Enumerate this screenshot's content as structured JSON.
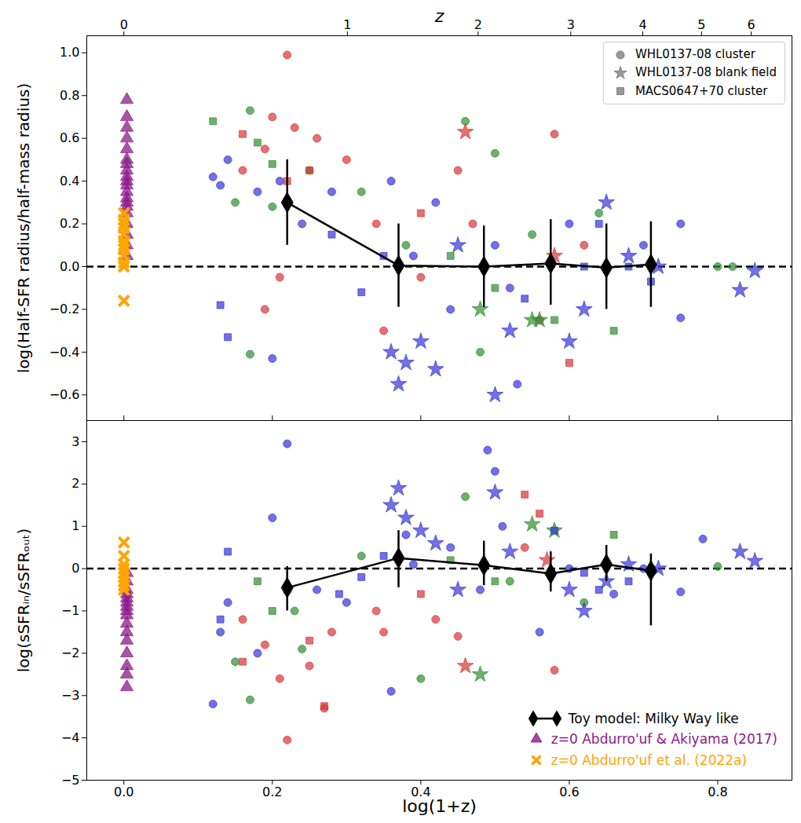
{
  "chart_data": [
    {
      "type": "scatter",
      "ylabel": "log(Half-SFR radius/half-mass radius)",
      "x2label": "z",
      "xlim": [
        -0.05,
        0.9
      ],
      "xticks": [
        {
          "value": 0,
          "label": "0.0"
        },
        0.2,
        0.4,
        0.6,
        0.8
      ],
      "x2ticks": [
        0,
        {
          "value": 0.30103,
          "label": "1"
        },
        {
          "value": 0.47712,
          "label": "2"
        },
        {
          "value": 0.60206,
          "label": "3"
        },
        {
          "value": 0.69897,
          "label": "4"
        },
        {
          "value": 0.77815,
          "label": "5"
        },
        {
          "value": 0.8451,
          "label": "6"
        }
      ],
      "ylim": [
        -0.72,
        1.08
      ],
      "yticks": [
        {
          "value": -0.6,
          "label": "−0.6"
        },
        {
          "value": -0.4,
          "label": "−0.4"
        },
        {
          "value": -0.2,
          "label": "−0.2"
        },
        {
          "value": 0,
          "label": "0.0"
        },
        0.2,
        0.4,
        0.6,
        0.8,
        {
          "value": 1,
          "label": "1.0"
        }
      ],
      "tick_labels": "y",
      "hline": 0,
      "legend": "upper right",
      "series": [
        {
          "name": "WHL0137-08 cluster",
          "marker": "circle",
          "color": "#808080",
          "x": [
            0.12,
            0.13,
            0.14,
            0.15,
            0.16,
            0.17,
            0.18,
            0.19,
            0.2,
            0.2,
            0.21,
            0.22,
            0.23,
            0.24,
            0.25,
            0.26,
            0.28,
            0.3,
            0.17,
            0.2,
            0.19,
            0.21,
            0.32,
            0.34,
            0.36,
            0.38,
            0.4,
            0.42,
            0.44,
            0.46,
            0.47,
            0.48,
            0.5,
            0.5,
            0.52,
            0.53,
            0.55,
            0.56,
            0.58,
            0.6,
            0.62,
            0.64,
            0.7,
            0.75,
            0.75,
            0.8,
            0.82,
            0.35,
            0.39,
            0.45
          ],
          "y": [
            0.42,
            0.38,
            0.5,
            0.3,
            0.45,
            0.73,
            0.35,
            0.55,
            0.7,
            0.28,
            0.4,
            0.99,
            0.65,
            0.2,
            0.45,
            0.6,
            0.35,
            0.5,
            -0.41,
            -0.43,
            -0.2,
            -0.05,
            0.35,
            0.2,
            0.4,
            0.1,
            -0.05,
            0.3,
            -0.2,
            0.68,
            0.2,
            -0.4,
            0.53,
            0.1,
            -0.1,
            -0.55,
            0.15,
            -0.25,
            0.62,
            0.2,
            0.1,
            0.25,
            0.1,
            0.2,
            -0.24,
            0.0,
            0.0,
            -0.3,
            0.05,
            0.45
          ],
          "colors": [
            "#3535d8",
            "#3535d8",
            "#3535d8",
            "#2f8f2f",
            "#d93535",
            "#2f8f2f",
            "#3535d8",
            "#d93535",
            "#d93535",
            "#2f8f2f",
            "#3535d8",
            "#d93535",
            "#d93535",
            "#3535d8",
            "#2f8f2f",
            "#d93535",
            "#3535d8",
            "#d93535",
            "#2f8f2f",
            "#3535d8",
            "#d93535",
            "#d93535",
            "#2f8f2f",
            "#d93535",
            "#3535d8",
            "#2f8f2f",
            "#d93535",
            "#3535d8",
            "#3535d8",
            "#2f8f2f",
            "#d93535",
            "#2f8f2f",
            "#2f8f2f",
            "#3535d8",
            "#3535d8",
            "#3535d8",
            "#2f8f2f",
            "#d93535",
            "#d93535",
            "#3535d8",
            "#d93535",
            "#2f8f2f",
            "#3535d8",
            "#3535d8",
            "#3535d8",
            "#2f8f2f",
            "#2f8f2f",
            "#d93535",
            "#3535d8",
            "#d93535"
          ]
        },
        {
          "name": "WHL0137-08 blank field",
          "marker": "star",
          "color": "#808080",
          "x": [
            0.36,
            0.37,
            0.38,
            0.4,
            0.42,
            0.45,
            0.48,
            0.5,
            0.52,
            0.55,
            0.58,
            0.6,
            0.62,
            0.65,
            0.68,
            0.72,
            0.83,
            0.85,
            0.46,
            0.56
          ],
          "y": [
            -0.4,
            -0.55,
            -0.45,
            -0.35,
            -0.48,
            0.1,
            -0.2,
            -0.6,
            -0.3,
            -0.25,
            0.05,
            -0.35,
            -0.2,
            0.3,
            0.05,
            0.0,
            -0.11,
            -0.02,
            0.63,
            -0.25
          ],
          "colors": [
            "#3535d8",
            "#3535d8",
            "#3535d8",
            "#3535d8",
            "#3535d8",
            "#3535d8",
            "#2f8f2f",
            "#3535d8",
            "#3535d8",
            "#2f8f2f",
            "#d93535",
            "#3535d8",
            "#3535d8",
            "#3535d8",
            "#3535d8",
            "#3535d8",
            "#3535d8",
            "#3535d8",
            "#d93535",
            "#2f8f2f"
          ]
        },
        {
          "name": "MACS0647+70 cluster",
          "marker": "square",
          "color": "#808080",
          "x": [
            0.12,
            0.13,
            0.14,
            0.16,
            0.18,
            0.2,
            0.22,
            0.25,
            0.28,
            0.32,
            0.35,
            0.4,
            0.44,
            0.5,
            0.54,
            0.58,
            0.6,
            0.62,
            0.64,
            0.66,
            0.68,
            0.71
          ],
          "y": [
            0.68,
            -0.18,
            -0.33,
            0.62,
            0.58,
            0.48,
            0.4,
            0.45,
            0.15,
            -0.12,
            0.05,
            0.25,
            0.05,
            -0.1,
            -0.15,
            -0.25,
            -0.45,
            0.0,
            0.2,
            -0.3,
            0.0,
            -0.07
          ],
          "colors": [
            "#2f8f2f",
            "#3535d8",
            "#3535d8",
            "#d93535",
            "#2f8f2f",
            "#2f8f2f",
            "#d93535",
            "#d93535",
            "#3535d8",
            "#3535d8",
            "#3535d8",
            "#d93535",
            "#2f8f2f",
            "#2f8f2f",
            "#3535d8",
            "#2f8f2f",
            "#d93535",
            "#3535d8",
            "#3535d8",
            "#2f8f2f",
            "#3535d8",
            "#3535d8"
          ]
        },
        {
          "name": "Toy model: Milky Way like",
          "marker": "diamond",
          "color": "#000000",
          "line_style": "solid",
          "legend": false,
          "x": [
            0.22,
            0.37,
            0.485,
            0.575,
            0.65,
            0.71
          ],
          "y": [
            0.3,
            0.005,
            0.0,
            0.015,
            -0.005,
            0.01
          ],
          "y_lower": [
            0.1,
            -0.19,
            -0.19,
            -0.18,
            -0.2,
            -0.19
          ],
          "y_upper": [
            0.5,
            0.2,
            0.19,
            0.22,
            0.2,
            0.21
          ]
        },
        {
          "name": "z=0 Abdurro'uf & Akiyama (2017)",
          "marker": "triangle",
          "color": "#8b1a8b",
          "legend": false,
          "x": [
            0.004,
            0.004,
            0.004,
            0.004,
            0.004,
            0.004,
            0.004,
            0.004,
            0.004,
            0.004,
            0.004,
            0.004,
            0.004,
            0.004,
            0.004,
            0.004,
            0.004,
            0.004,
            0.004,
            0.004
          ],
          "y": [
            0.78,
            0.7,
            0.65,
            0.6,
            0.55,
            0.5,
            0.48,
            0.45,
            0.42,
            0.4,
            0.38,
            0.35,
            0.32,
            0.3,
            0.28,
            0.25,
            0.2,
            0.15,
            0.1,
            0.05
          ]
        },
        {
          "name": "z=0 Abdurro'uf et al. (2022a)",
          "marker": "times",
          "color": "#ffa500",
          "legend": false,
          "x": [
            0,
            0,
            0,
            0,
            0,
            0,
            0,
            0,
            0,
            0,
            0,
            0
          ],
          "y": [
            0.25,
            0.22,
            0.2,
            0.18,
            0.15,
            0.12,
            0.1,
            0.08,
            0.05,
            0.02,
            0.0,
            -0.16
          ]
        }
      ]
    },
    {
      "type": "scatter",
      "xlabel": "log(1+z)",
      "ylabel": "log(sSFRᵢₙ/sSFRₒᵤₜ)",
      "xlim": [
        -0.05,
        0.9
      ],
      "xticks": [
        {
          "value": 0,
          "label": "0.0"
        },
        0.2,
        0.4,
        0.6,
        0.8
      ],
      "ylim": [
        -5,
        3.5
      ],
      "yticks": [
        {
          "value": -5,
          "label": "−5"
        },
        {
          "value": -4,
          "label": "−4"
        },
        {
          "value": -3,
          "label": "−3"
        },
        {
          "value": -2,
          "label": "−2"
        },
        {
          "value": -1,
          "label": "−1"
        },
        0,
        1,
        2,
        3
      ],
      "hline": 0,
      "legend": "lower right",
      "series": [
        {
          "name": "WHL0137-08 cluster",
          "marker": "circle",
          "color": "#808080",
          "legend": false,
          "x": [
            0.12,
            0.13,
            0.14,
            0.15,
            0.16,
            0.17,
            0.18,
            0.19,
            0.2,
            0.21,
            0.22,
            0.22,
            0.23,
            0.25,
            0.26,
            0.28,
            0.3,
            0.32,
            0.34,
            0.36,
            0.38,
            0.4,
            0.42,
            0.44,
            0.46,
            0.48,
            0.49,
            0.5,
            0.51,
            0.52,
            0.54,
            0.56,
            0.58,
            0.6,
            0.62,
            0.66,
            0.7,
            0.75,
            0.78,
            0.8,
            0.35,
            0.39,
            0.45,
            0.27,
            0.24
          ],
          "y": [
            -3.2,
            -1.5,
            -0.8,
            -2.2,
            -1.2,
            -3.1,
            -2.0,
            -1.8,
            1.2,
            -2.6,
            2.95,
            -4.05,
            -1.0,
            -2.3,
            -0.5,
            -1.5,
            -0.8,
            0.3,
            -1.0,
            -2.9,
            0.8,
            -2.6,
            -1.2,
            0.5,
            1.7,
            -0.5,
            2.8,
            2.3,
            1.0,
            -0.3,
            0.5,
            -1.5,
            -2.4,
            0.0,
            -0.8,
            -0.6,
            0.0,
            -0.55,
            0.7,
            0.05,
            -1.5,
            0.1,
            -1.6,
            -3.3,
            -1.9
          ],
          "colors": [
            "#3535d8",
            "#3535d8",
            "#3535d8",
            "#2f8f2f",
            "#d93535",
            "#2f8f2f",
            "#3535d8",
            "#d93535",
            "#3535d8",
            "#d93535",
            "#3535d8",
            "#d93535",
            "#2f8f2f",
            "#d93535",
            "#3535d8",
            "#d93535",
            "#3535d8",
            "#2f8f2f",
            "#d93535",
            "#3535d8",
            "#3535d8",
            "#2f8f2f",
            "#d93535",
            "#3535d8",
            "#2f8f2f",
            "#3535d8",
            "#3535d8",
            "#3535d8",
            "#3535d8",
            "#2f8f2f",
            "#d93535",
            "#3535d8",
            "#d93535",
            "#3535d8",
            "#2f8f2f",
            "#3535d8",
            "#3535d8",
            "#3535d8",
            "#3535d8",
            "#2f8f2f",
            "#d93535",
            "#3535d8",
            "#d93535",
            "#d93535",
            "#2f8f2f"
          ]
        },
        {
          "name": "WHL0137-08 blank field",
          "marker": "star",
          "color": "#808080",
          "legend": false,
          "x": [
            0.36,
            0.37,
            0.38,
            0.4,
            0.42,
            0.45,
            0.48,
            0.5,
            0.52,
            0.55,
            0.57,
            0.6,
            0.62,
            0.65,
            0.68,
            0.72,
            0.83,
            0.85,
            0.46,
            0.58
          ],
          "y": [
            1.5,
            1.9,
            1.2,
            0.9,
            0.6,
            -0.5,
            -2.5,
            1.8,
            0.4,
            1.05,
            0.2,
            -0.5,
            -1.0,
            -0.3,
            0.1,
            0.0,
            0.4,
            0.18,
            -2.3,
            0.9
          ],
          "colors": [
            "#3535d8",
            "#3535d8",
            "#3535d8",
            "#3535d8",
            "#3535d8",
            "#3535d8",
            "#2f8f2f",
            "#3535d8",
            "#3535d8",
            "#2f8f2f",
            "#d93535",
            "#3535d8",
            "#3535d8",
            "#3535d8",
            "#3535d8",
            "#3535d8",
            "#3535d8",
            "#3535d8",
            "#d93535",
            "#2f8f2f"
          ]
        },
        {
          "name": "MACS0647+70 cluster",
          "marker": "square",
          "color": "#808080",
          "legend": false,
          "x": [
            0.13,
            0.14,
            0.16,
            0.18,
            0.2,
            0.22,
            0.25,
            0.27,
            0.29,
            0.32,
            0.35,
            0.4,
            0.44,
            0.5,
            0.54,
            0.56,
            0.58,
            0.62,
            0.64,
            0.66,
            0.68,
            0.71
          ],
          "y": [
            -1.2,
            0.4,
            -2.2,
            -0.3,
            -1.0,
            -0.5,
            -1.7,
            -3.25,
            -0.6,
            -0.2,
            0.3,
            -0.6,
            0.2,
            -0.3,
            1.75,
            1.3,
            0.9,
            -0.1,
            -0.5,
            0.8,
            -0.3,
            -0.05
          ],
          "colors": [
            "#3535d8",
            "#3535d8",
            "#d93535",
            "#2f8f2f",
            "#2f8f2f",
            "#d93535",
            "#d93535",
            "#d93535",
            "#3535d8",
            "#3535d8",
            "#3535d8",
            "#d93535",
            "#2f8f2f",
            "#2f8f2f",
            "#d93535",
            "#d93535",
            "#3535d8",
            "#3535d8",
            "#3535d8",
            "#2f8f2f",
            "#3535d8",
            "#3535d8"
          ]
        },
        {
          "name": "Toy model: Milky Way like",
          "marker": "diamond",
          "color": "#000000",
          "line_style": "solid",
          "x": [
            0.22,
            0.37,
            0.485,
            0.575,
            0.65,
            0.71
          ],
          "y": [
            -0.45,
            0.25,
            0.08,
            -0.12,
            0.1,
            -0.05
          ],
          "y_lower": [
            -1.0,
            -0.45,
            -0.4,
            -0.55,
            -0.3,
            -1.35
          ],
          "y_upper": [
            0.05,
            0.9,
            0.65,
            0.4,
            0.55,
            0.35
          ]
        },
        {
          "name": "z=0 Abdurro'uf & Akiyama (2017)",
          "marker": "triangle",
          "color": "#8b1a8b",
          "x": [
            0.004,
            0.004,
            0.004,
            0.004,
            0.004,
            0.004,
            0.004,
            0.004,
            0.004,
            0.004,
            0.004,
            0.004,
            0.004,
            0.004,
            0.004,
            0.004
          ],
          "y": [
            -0.1,
            -0.3,
            -0.5,
            -0.6,
            -0.7,
            -0.8,
            -0.9,
            -1.0,
            -1.1,
            -1.3,
            -1.5,
            -1.7,
            -2.0,
            -2.3,
            -2.5,
            -2.8
          ]
        },
        {
          "name": "z=0 Abdurro'uf et al. (2022a)",
          "marker": "times",
          "color": "#ffa500",
          "x": [
            0,
            0,
            0,
            0,
            0,
            0,
            0,
            0,
            0
          ],
          "y": [
            0.62,
            0.3,
            0.1,
            0.0,
            -0.1,
            -0.2,
            -0.3,
            -0.4,
            -0.5
          ]
        }
      ]
    }
  ]
}
